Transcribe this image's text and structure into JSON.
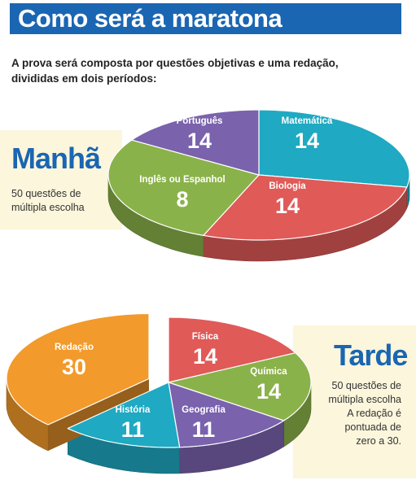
{
  "title": "Como será a maratona",
  "intro": "A prova será composta por questões objetivas e uma redação, divididas em dois períodos:",
  "colors": {
    "brand_blue": "#1a66b2",
    "panel": "#fbf6dc",
    "red": "#e05a58",
    "green": "#8ab24a",
    "purple": "#7a62ad",
    "cyan": "#1fa9c2",
    "orange": "#f29a2b"
  },
  "morning": {
    "label": "Manhã",
    "note": [
      "50 questões de",
      "múltipla escolha"
    ]
  },
  "afternoon": {
    "label": "Tarde",
    "note": [
      "50 questões de",
      "múltipla escolha",
      "A redação é",
      "pontuada de",
      "zero a 30."
    ]
  },
  "chart_data": [
    {
      "type": "pie",
      "title": "Manhã",
      "slices": [
        {
          "name": "Português",
          "value": 14,
          "color": "#1fa9c2"
        },
        {
          "name": "Matemática",
          "value": 14,
          "color": "#e05a58"
        },
        {
          "name": "Biologia",
          "value": 14,
          "color": "#8ab24a"
        },
        {
          "name": "Inglês ou Espanhol",
          "value": 8,
          "color": "#7a62ad"
        }
      ]
    },
    {
      "type": "pie",
      "title": "Tarde",
      "slices": [
        {
          "name": "Física",
          "value": 14,
          "color": "#e05a58"
        },
        {
          "name": "Química",
          "value": 14,
          "color": "#8ab24a"
        },
        {
          "name": "Geografia",
          "value": 11,
          "color": "#7a62ad"
        },
        {
          "name": "História",
          "value": 11,
          "color": "#1fa9c2"
        },
        {
          "name": "Redação",
          "value": 30,
          "color": "#f29a2b"
        }
      ]
    }
  ]
}
